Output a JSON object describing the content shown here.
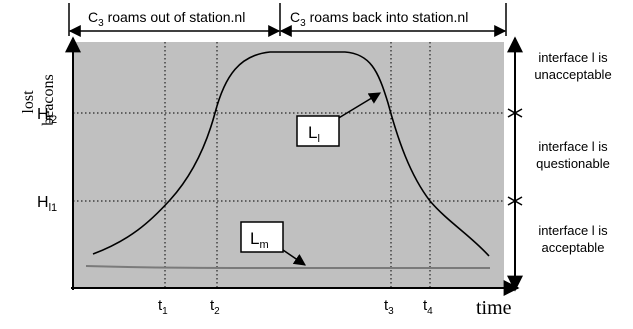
{
  "top_labels": {
    "left_pre": "C",
    "left_sub": "3",
    "left_post": " roams out of station.nl",
    "right_pre": "C",
    "right_sub": "3",
    "right_post": " roams back into station.nl"
  },
  "y_axis": {
    "label_line1": "lost",
    "label_line2": "beacons",
    "threshold_high_main": "H",
    "threshold_high_sub": "l2",
    "threshold_low_main": "H",
    "threshold_low_sub": "l1"
  },
  "x_axis": {
    "label": "time",
    "ticks": [
      {
        "main": "t",
        "sub": "1"
      },
      {
        "main": "t",
        "sub": "2"
      },
      {
        "main": "t",
        "sub": "3"
      },
      {
        "main": "t",
        "sub": "4"
      }
    ]
  },
  "curve_labels": {
    "l_main": "L",
    "l_sub": "l",
    "m_main": "L",
    "m_sub": "m"
  },
  "regions": [
    {
      "line1": "interface l is",
      "line2": "unacceptable"
    },
    {
      "line1": "interface l is",
      "line2": "questionable"
    },
    {
      "line1": "interface l is",
      "line2": "acceptable"
    }
  ],
  "colors": {
    "plot_background": "#c0c0c0",
    "curve_l": "#000000",
    "curve_m": "#7a7a7a"
  }
}
